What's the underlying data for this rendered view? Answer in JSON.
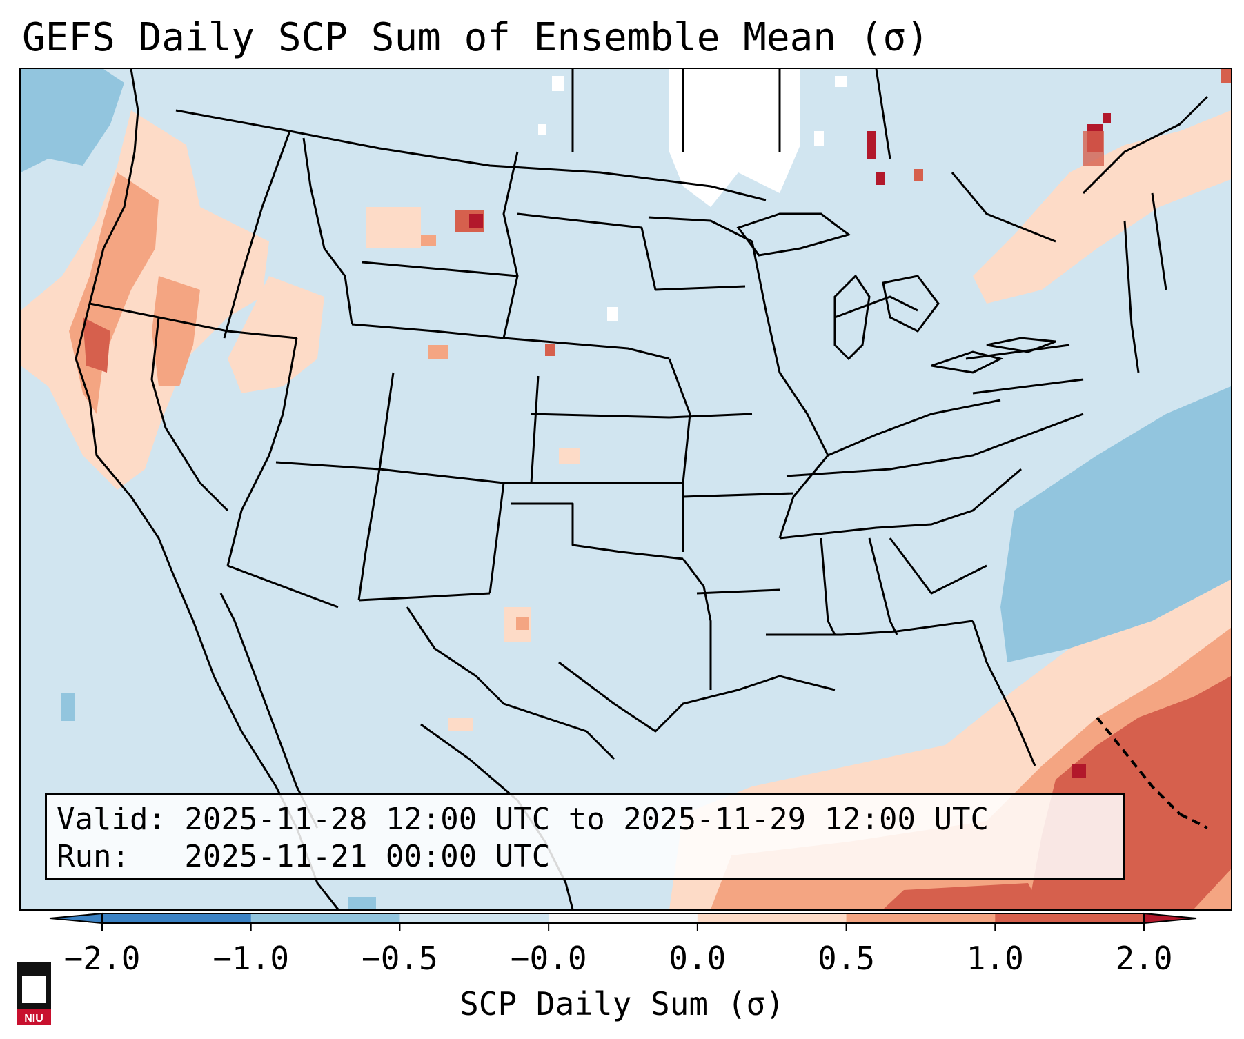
{
  "title": "GEFS Daily SCP Sum of Ensemble Mean (σ)",
  "info": {
    "valid_line": "Valid: 2025-11-28 12:00 UTC to 2025-11-29 12:00 UTC",
    "run_line": "Run:   2025-11-21 00:00 UTC"
  },
  "colorbar": {
    "ticks": [
      "−2.0",
      "−1.0",
      "−0.5",
      "−0.0",
      "0.0",
      "0.5",
      "1.0",
      "2.0"
    ],
    "label": "SCP Daily Sum (σ)",
    "colors": [
      "#3b82c4",
      "#92c5de",
      "#d1e5f0",
      "#f7f7f7",
      "#fddbc7",
      "#f4a582",
      "#d6604d",
      "#b2182b"
    ],
    "extend": "both"
  },
  "logo": {
    "text": "NIU",
    "color": "#c8102e"
  },
  "colors": {
    "background_field": "#d1e5f0",
    "ocean_minus": "#92c5de",
    "pos_low": "#fddbc7",
    "pos_mid": "#f4a582",
    "pos_high": "#d6604d",
    "pos_max": "#b2182b"
  }
}
